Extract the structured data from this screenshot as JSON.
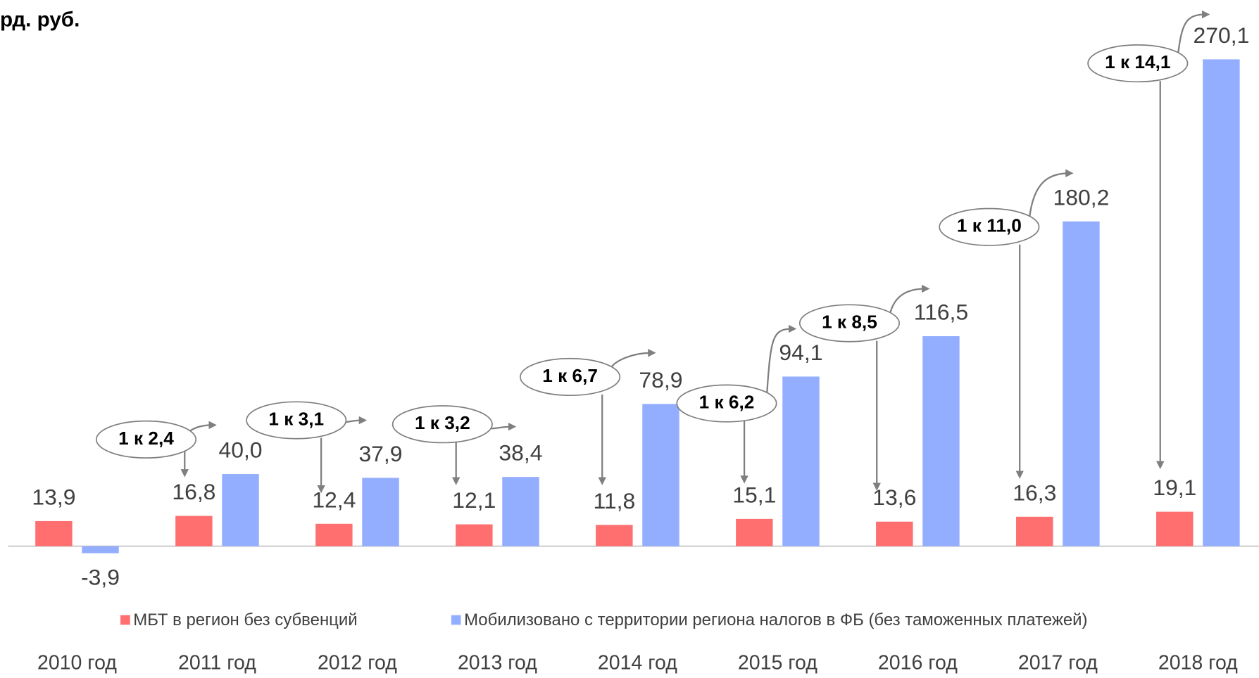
{
  "chart_data": {
    "type": "bar",
    "title": "рд. руб.",
    "categories": [
      "2010 год",
      "2011 год",
      "2012 год",
      "2013 год",
      "2014 год",
      "2015 год",
      "2016 год",
      "2017 год",
      "2018 год"
    ],
    "series": [
      {
        "name": "МБТ в регион без субвенций",
        "color": "#ff6f6f",
        "values": [
          13.9,
          16.8,
          12.4,
          12.1,
          11.8,
          15.1,
          13.6,
          16.3,
          19.1
        ],
        "value_labels": [
          "13,9",
          "16,8",
          "12,4",
          "12,1",
          "11,8",
          "15,1",
          "13,6",
          "16,3",
          "19,1"
        ]
      },
      {
        "name": "Мобилизовано с территории региона налогов в ФБ (без таможенных платежей)",
        "color": "#94aeff",
        "values": [
          -3.9,
          40.0,
          37.9,
          38.4,
          78.9,
          94.1,
          116.5,
          180.2,
          270.1
        ],
        "value_labels": [
          "-3,9",
          "40,0",
          "37,9",
          "38,4",
          "78,9",
          "94,1",
          "116,5",
          "180,2",
          "270,1"
        ]
      }
    ],
    "annotations": [
      "1 к 2,4",
      "1 к 3,1",
      "1 к 3,2",
      "1 к 6,7",
      "1 к 6,2",
      "1 к 8,5",
      "1 к 11,0",
      "1 к 14,1"
    ]
  }
}
